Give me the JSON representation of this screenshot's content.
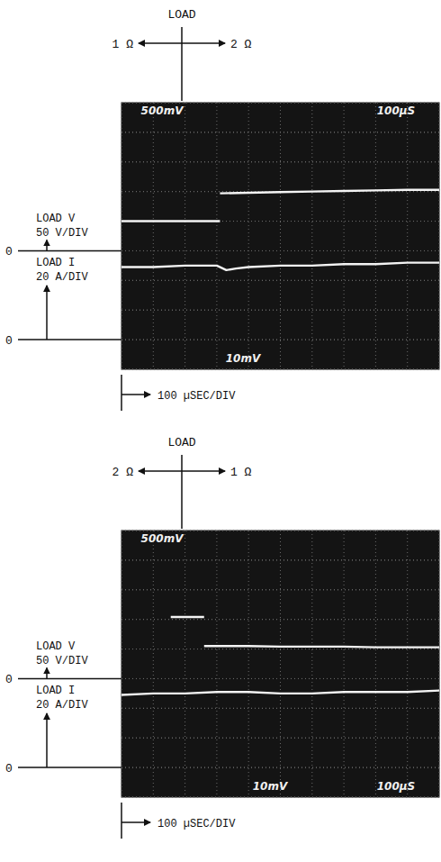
{
  "chart_data": [
    {
      "type": "line",
      "title": "LOAD",
      "annotations": {
        "left": "1 Ω",
        "right": "2 Ω"
      },
      "screen_labels": [
        "500mV",
        "100µS",
        "10mV"
      ],
      "x_label": "100 µSEC/DIV",
      "xlim": [
        0,
        1000
      ],
      "xticks": [
        0,
        100,
        200,
        300,
        400,
        500,
        600,
        700,
        800,
        900,
        1000
      ],
      "grid": true,
      "tick_labels": false,
      "series": [
        {
          "name": "LOAD V",
          "scale_label": "50 V/DIV",
          "zero_label": "0",
          "color": "#f4f4f4",
          "ylim": [
            -200,
            250
          ],
          "yticks": [
            -200,
            -150,
            -100,
            -50,
            0,
            50,
            100,
            150,
            200,
            250
          ],
          "x": [
            0,
            100,
            200,
            310,
            310,
            310,
            400,
            500,
            600,
            700,
            800,
            900,
            1000
          ],
          "values": [
            50,
            50,
            50,
            50,
            null,
            97,
            98,
            99,
            100,
            101,
            102,
            103,
            103
          ]
        },
        {
          "name": "LOAD I",
          "scale_label": "20 A/DIV",
          "zero_label": "0",
          "color": "#f4f4f4",
          "ylim": [
            -20,
            160
          ],
          "yticks": [
            -20,
            0,
            20,
            40,
            60,
            80,
            100,
            120,
            140,
            160
          ],
          "x": [
            0,
            100,
            200,
            300,
            330,
            360,
            400,
            500,
            600,
            700,
            800,
            900,
            1000
          ],
          "values": [
            49,
            49,
            50,
            50,
            47,
            48,
            49,
            50,
            50,
            51,
            51,
            52,
            52
          ]
        }
      ]
    },
    {
      "type": "line",
      "title": "LOAD",
      "annotations": {
        "left": "2 Ω",
        "right": "1 Ω"
      },
      "screen_labels": [
        "500mV",
        "100µS",
        "10mV"
      ],
      "x_label": "100 µSEC/DIV",
      "xlim": [
        0,
        1000
      ],
      "xticks": [
        0,
        100,
        200,
        300,
        400,
        500,
        600,
        700,
        800,
        900,
        1000
      ],
      "grid": true,
      "tick_labels": false,
      "series": [
        {
          "name": "LOAD V",
          "scale_label": "50 V/DIV",
          "zero_label": "0",
          "color": "#f4f4f4",
          "ylim": [
            -200,
            250
          ],
          "yticks": [
            -200,
            -150,
            -100,
            -50,
            0,
            50,
            100,
            150,
            200,
            250
          ],
          "x": [
            155,
            190,
            260,
            260,
            260,
            400,
            500,
            600,
            700,
            800,
            900,
            1000
          ],
          "values": [
            104,
            104,
            104,
            null,
            55,
            55,
            54,
            54,
            54,
            53,
            53,
            53
          ]
        },
        {
          "name": "LOAD I",
          "scale_label": "20 A/DIV",
          "zero_label": "0",
          "color": "#f4f4f4",
          "ylim": [
            -20,
            160
          ],
          "yticks": [
            -20,
            0,
            20,
            40,
            60,
            80,
            100,
            120,
            140,
            160
          ],
          "x": [
            0,
            100,
            200,
            300,
            400,
            500,
            600,
            700,
            800,
            900,
            1000
          ],
          "values": [
            49,
            50,
            50,
            51,
            51,
            50,
            50,
            51,
            51,
            51,
            52
          ]
        }
      ]
    }
  ]
}
